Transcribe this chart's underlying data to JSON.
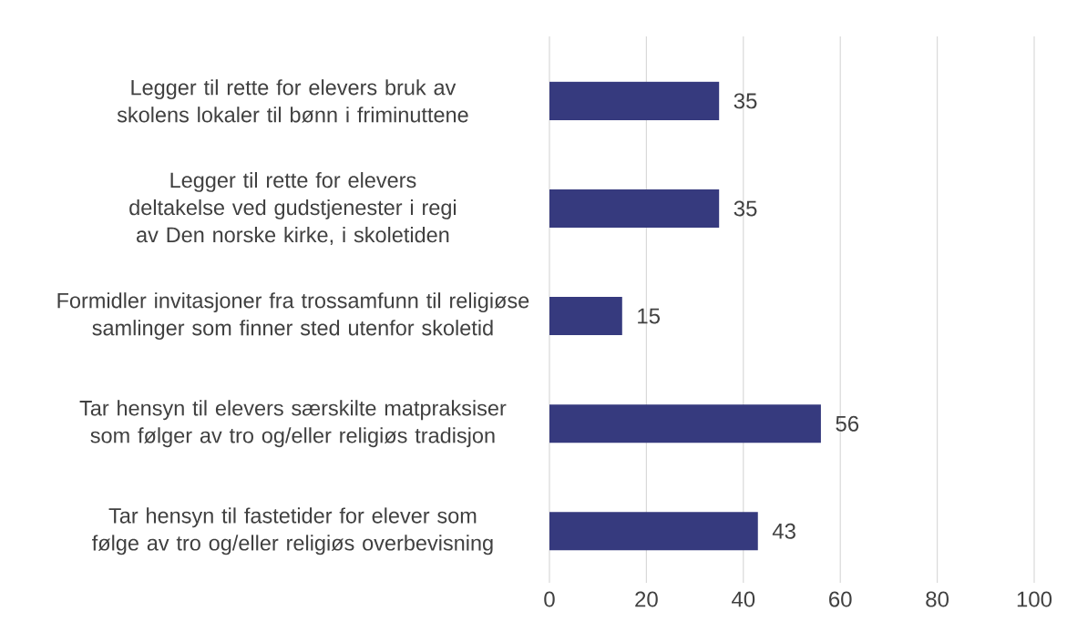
{
  "chart_data": {
    "type": "bar",
    "orientation": "horizontal",
    "categories": [
      "Legger til rette for elevers bruk av skolens lokaler til bønn i friminuttene",
      "Legger til rette for elevers deltakelse ved gudstjenester i regi av Den norske kirke, i skoletiden",
      "Formidler invitasjoner fra trossamfunn til religiøse samlinger som finner sted utenfor skoletid",
      "Tar hensyn til elevers særskilte matpraksiser som følger av tro og/eller religiøs tradisjon",
      "Tar hensyn til fastetider for elever som følge av tro og/eller religiøs overbevisning"
    ],
    "values": [
      35,
      35,
      15,
      56,
      43
    ],
    "color": "#363a7e",
    "xlim": [
      0,
      100
    ],
    "xticks": [
      0,
      20,
      40,
      60,
      80,
      100
    ],
    "grid": "x",
    "data_labels": true
  }
}
